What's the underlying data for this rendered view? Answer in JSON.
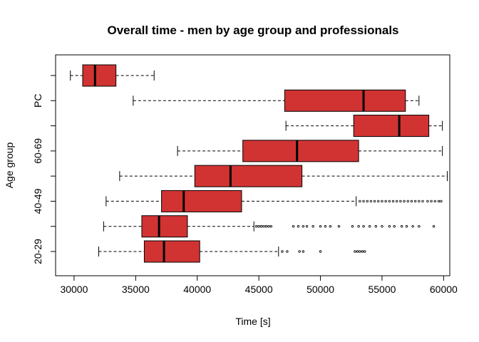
{
  "chart_data": {
    "type": "boxplot",
    "orientation": "horizontal",
    "title": "Overall time - men by age group and professionals",
    "xlabel": "Time [s]",
    "ylabel": "Age group",
    "xlim": [
      28500,
      60500
    ],
    "x_ticks": [
      30000,
      35000,
      40000,
      45000,
      50000,
      55000,
      60000
    ],
    "box_color": "#d13333",
    "categories": [
      "20-29",
      "",
      "40-49",
      "",
      "60-69",
      "",
      "PC",
      ""
    ],
    "shown_category_labels": [
      "20-29",
      "40-49",
      "60-69",
      "PC"
    ],
    "boxes": [
      {
        "whisker_low": 32000,
        "q1": 35700,
        "median": 37300,
        "q3": 40200,
        "whisker_high": 46600,
        "outliers": [
          46900,
          47300,
          48300,
          48600,
          50000,
          52800,
          53000,
          53200,
          53400,
          53600
        ]
      },
      {
        "whisker_low": 32400,
        "q1": 35500,
        "median": 36900,
        "q3": 39200,
        "whisker_high": 44600,
        "outliers": [
          44800,
          45000,
          45200,
          45400,
          45600,
          45800,
          46000,
          47800,
          48200,
          48600,
          48900,
          49400,
          50000,
          50400,
          50800,
          51500,
          52600,
          53100,
          53500,
          54000,
          54500,
          55000,
          55600,
          56000,
          56600,
          57000,
          57500,
          58000,
          59200
        ]
      },
      {
        "whisker_low": 32600,
        "q1": 37100,
        "median": 38900,
        "q3": 43600,
        "whisker_high": 52900,
        "outliers": [
          53200,
          53500,
          53800,
          54100,
          54400,
          54700,
          55000,
          55300,
          55600,
          55900,
          56200,
          56500,
          56800,
          57100,
          57400,
          57700,
          58000,
          58300,
          58700,
          59000,
          59300,
          59600,
          59800
        ]
      },
      {
        "whisker_low": 33700,
        "q1": 39800,
        "median": 42700,
        "q3": 48500,
        "whisker_high": 60300,
        "outliers": []
      },
      {
        "whisker_low": 38400,
        "q1": 43700,
        "median": 48100,
        "q3": 53100,
        "whisker_high": 59900,
        "outliers": []
      },
      {
        "whisker_low": 47200,
        "q1": 52700,
        "median": 56400,
        "q3": 58800,
        "whisker_high": 59900,
        "outliers": []
      },
      {
        "whisker_low": 34800,
        "q1": 47100,
        "median": 53500,
        "q3": 56900,
        "whisker_high": 58000,
        "outliers": []
      },
      {
        "whisker_low": 29700,
        "q1": 30700,
        "median": 31700,
        "q3": 33400,
        "whisker_high": 36500,
        "outliers": []
      }
    ],
    "grid": false,
    "legend": "none"
  }
}
